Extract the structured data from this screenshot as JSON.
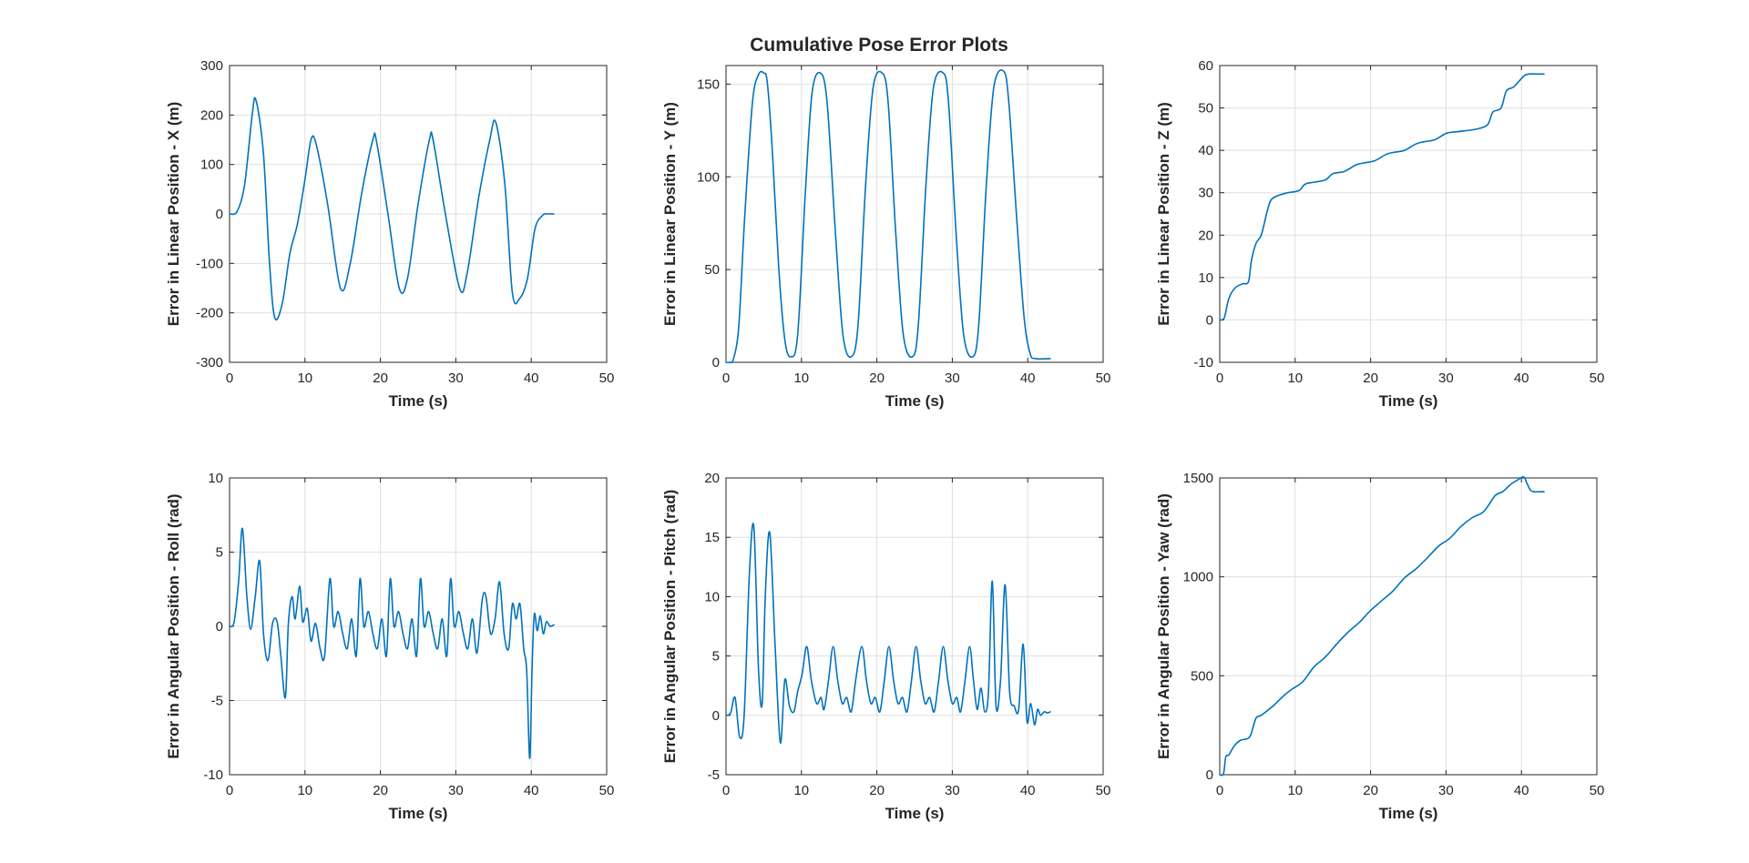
{
  "figure": {
    "title": "Cumulative Pose Error Plots"
  },
  "colors": {
    "series": "#0072BD",
    "axis": "#262626",
    "grid": "#dfdfdf"
  },
  "chart_data": [
    {
      "id": "x",
      "type": "line",
      "title": "",
      "xlabel": "Time (s)",
      "ylabel": "Error in Linear Position - X (m)",
      "xlim": [
        0,
        50
      ],
      "ylim": [
        -300,
        300
      ],
      "xticks": [
        0,
        10,
        20,
        30,
        40,
        50
      ],
      "yticks": [
        -300,
        -200,
        -100,
        0,
        100,
        200,
        300
      ],
      "grid": true,
      "series": [
        {
          "x": [
            0,
            1,
            2,
            3,
            3.5,
            4.5,
            5.3,
            6,
            7,
            8,
            9,
            10,
            10.8,
            11.5,
            13,
            14.7,
            16,
            17.5,
            19,
            19.5,
            21,
            22.5,
            23.6,
            25,
            26.5,
            27,
            28.5,
            30.5,
            31.5,
            33,
            34.5,
            35.3,
            36.5,
            37.5,
            38.5,
            39.5,
            40.5,
            41.5,
            42,
            43
          ],
          "y": [
            0,
            5,
            60,
            200,
            230,
            120,
            -100,
            -210,
            -180,
            -80,
            -20,
            70,
            150,
            140,
            20,
            -150,
            -100,
            40,
            150,
            145,
            0,
            -150,
            -130,
            20,
            150,
            148,
            10,
            -150,
            -120,
            30,
            150,
            185,
            60,
            -160,
            -170,
            -130,
            -30,
            -3,
            0,
            0
          ]
        }
      ]
    },
    {
      "id": "y",
      "type": "line",
      "title": "",
      "xlabel": "Time (s)",
      "ylabel": "Error in Linear Position - Y (m)",
      "xlim": [
        0,
        50
      ],
      "ylim": [
        0,
        160
      ],
      "xticks": [
        0,
        10,
        20,
        30,
        40,
        50
      ],
      "yticks": [
        0,
        50,
        100,
        150
      ],
      "grid": true,
      "series": [
        {
          "x": [
            0,
            0.5,
            1,
            1.7,
            2.5,
            3.5,
            4.3,
            5,
            5.5,
            6.2,
            7,
            7.8,
            8.6,
            9.5,
            10.5,
            11.4,
            12.5,
            13.4,
            14.5,
            15.5,
            16.6,
            17.5,
            18.5,
            19.5,
            20.7,
            21.5,
            22.5,
            23.5,
            24.7,
            25.5,
            26.5,
            27.5,
            28.8,
            29.5,
            30.5,
            31.5,
            32.7,
            33.5,
            34.5,
            35.5,
            36.8,
            37.5,
            38.5,
            39.5,
            40.3,
            41,
            43
          ],
          "y": [
            0,
            0,
            2,
            20,
            80,
            140,
            155,
            156,
            150,
            110,
            50,
            12,
            3,
            15,
            90,
            145,
            156,
            140,
            70,
            15,
            3,
            20,
            95,
            148,
            156,
            140,
            70,
            15,
            3,
            20,
            95,
            148,
            156,
            140,
            70,
            15,
            3,
            20,
            95,
            148,
            157,
            140,
            80,
            25,
            5,
            2,
            2
          ]
        }
      ]
    },
    {
      "id": "z",
      "type": "line",
      "title": "",
      "xlabel": "Time (s)",
      "ylabel": "Error in Linear Position - Z (m)",
      "xlim": [
        0,
        50
      ],
      "ylim": [
        -10,
        60
      ],
      "xticks": [
        0,
        10,
        20,
        30,
        40,
        50
      ],
      "yticks": [
        -10,
        0,
        10,
        20,
        30,
        40,
        50,
        60
      ],
      "grid": true,
      "series": [
        {
          "x": [
            0,
            0.6,
            1.2,
            2,
            3,
            3.8,
            4.2,
            4.8,
            5.5,
            6.2,
            6.7,
            7.3,
            8,
            9,
            10.5,
            11.3,
            12.5,
            14,
            15,
            16.5,
            18,
            19,
            20.5,
            22,
            23,
            24.5,
            26,
            27,
            28.5,
            30,
            31,
            32.5,
            34,
            35.5,
            36.2,
            37.3,
            38,
            39,
            40.3,
            41,
            42,
            43
          ],
          "y": [
            0,
            0.5,
            5,
            7.5,
            8.5,
            9,
            14,
            18,
            20,
            25,
            28,
            29,
            29.5,
            30,
            30.5,
            32,
            32.5,
            33,
            34.5,
            35,
            36.5,
            37,
            37.5,
            39,
            39.5,
            40,
            41.5,
            42,
            42.5,
            44,
            44.3,
            44.6,
            45,
            46,
            49,
            50,
            54,
            55,
            57.5,
            58,
            58,
            58
          ]
        }
      ]
    },
    {
      "id": "roll",
      "type": "line",
      "title": "",
      "xlabel": "Time (s)",
      "ylabel": "Error in Angular Position - Roll (rad)",
      "xlim": [
        0,
        50
      ],
      "ylim": [
        -10,
        10
      ],
      "xticks": [
        0,
        10,
        20,
        30,
        40,
        50
      ],
      "yticks": [
        -10,
        -5,
        0,
        5,
        10
      ],
      "grid": true,
      "series": [
        {
          "x": [
            0,
            0.6,
            1.2,
            1.7,
            2.3,
            2.8,
            3.4,
            4,
            4.5,
            5.1,
            5.7,
            6.3,
            6.8,
            7.4,
            7.8,
            8.3,
            8.7,
            9.3,
            9.7,
            10.3,
            10.8,
            11.4,
            12,
            12.6,
            13.3,
            13.8,
            14.4,
            15,
            15.6,
            16.2,
            16.8,
            17.3,
            17.8,
            18.4,
            19,
            19.6,
            20.2,
            20.8,
            21.3,
            21.8,
            22.4,
            23,
            23.6,
            24.2,
            24.8,
            25.3,
            25.8,
            26.4,
            27,
            27.6,
            28.2,
            28.8,
            29.3,
            29.8,
            30.4,
            31,
            31.6,
            32.2,
            32.8,
            33.5,
            34,
            34.6,
            35.2,
            35.8,
            36.4,
            37,
            37.5,
            38,
            38.5,
            39,
            39.4,
            39.8,
            40.1,
            40.4,
            40.8,
            41.2,
            41.6,
            42,
            42.5,
            43
          ],
          "y": [
            0,
            0.3,
            3,
            6.6,
            2,
            -0.2,
            2,
            4.4,
            -0.5,
            -2.3,
            0.2,
            0.3,
            -2,
            -4.8,
            0.2,
            2,
            0.5,
            2.7,
            0.3,
            1.2,
            -1,
            0.2,
            -1.5,
            -2,
            3.2,
            0,
            1,
            -0.5,
            -1.5,
            0.5,
            -2,
            3.2,
            0,
            1,
            -0.5,
            -1.5,
            0.5,
            -2,
            3.2,
            0,
            1,
            -0.5,
            -1.5,
            0.5,
            -2,
            3.2,
            0,
            1,
            -0.5,
            -1.5,
            0.5,
            -2,
            3.2,
            0,
            1,
            -0.5,
            -1.5,
            0.5,
            -1.8,
            1.8,
            2,
            -0.5,
            0.5,
            3,
            -0.5,
            -1.5,
            1.5,
            0.5,
            1.5,
            -1.5,
            -3,
            -8.9,
            -3,
            0.8,
            -0.3,
            0.7,
            -0.5,
            0.3,
            0,
            0.1
          ]
        }
      ]
    },
    {
      "id": "pitch",
      "type": "line",
      "title": "",
      "xlabel": "Time (s)",
      "ylabel": "Error in Angular Position - Pitch (rad)",
      "xlim": [
        0,
        50
      ],
      "ylim": [
        -5,
        20
      ],
      "xticks": [
        0,
        10,
        20,
        30,
        40,
        50
      ],
      "yticks": [
        -5,
        0,
        5,
        10,
        15,
        20
      ],
      "grid": true,
      "series": [
        {
          "x": [
            0,
            0.6,
            1.2,
            1.8,
            2.4,
            3.1,
            3.7,
            4.3,
            4.8,
            5.2,
            5.8,
            6.5,
            7.2,
            7.8,
            8.4,
            9,
            9.5,
            10.1,
            10.7,
            11.3,
            12,
            12.6,
            13,
            13.6,
            14.2,
            14.8,
            15.4,
            16,
            16.6,
            17.2,
            18,
            18.6,
            19.2,
            19.8,
            20.4,
            21,
            21.6,
            22.2,
            22.8,
            23.4,
            24,
            24.6,
            25.2,
            25.8,
            26.4,
            27,
            27.6,
            28.2,
            28.8,
            29.4,
            30,
            30.6,
            31.1,
            31.7,
            32.3,
            32.8,
            33.3,
            33.8,
            34.3,
            34.8,
            35.3,
            35.8,
            36.4,
            37,
            37.6,
            38.2,
            38.8,
            39.4,
            39.9,
            40.4,
            40.9,
            41.3,
            41.7,
            42.2,
            42.6,
            43
          ],
          "y": [
            0,
            0.2,
            1.5,
            -1.8,
            0,
            12,
            15.8,
            4,
            1,
            10,
            15.4,
            6,
            -2.3,
            3,
            0.8,
            0.3,
            2,
            3.5,
            5.8,
            3,
            1,
            1.5,
            0.5,
            3,
            5.8,
            3,
            1,
            1.5,
            0.3,
            3,
            5.8,
            3,
            1,
            1.5,
            0.3,
            3,
            5.8,
            3,
            1,
            1.5,
            0.3,
            3,
            5.8,
            3,
            1,
            1.5,
            0.3,
            3,
            5.8,
            3,
            1,
            1.5,
            0.3,
            3,
            5.8,
            3,
            0.5,
            2.3,
            0.3,
            2,
            11.3,
            0.8,
            3,
            11,
            2,
            0.8,
            0.5,
            6,
            -0.5,
            1,
            -0.8,
            0.5,
            0,
            0.3,
            0.2,
            0.3
          ]
        }
      ]
    },
    {
      "id": "yaw",
      "type": "line",
      "title": "",
      "xlabel": "Time (s)",
      "ylabel": "Error in Angular Position - Yaw (rad)",
      "xlim": [
        0,
        50
      ],
      "ylim": [
        0,
        1500
      ],
      "xticks": [
        0,
        10,
        20,
        30,
        40,
        50
      ],
      "yticks": [
        0,
        500,
        1000,
        1500
      ],
      "grid": true,
      "series": [
        {
          "x": [
            0,
            0.5,
            0.8,
            1.2,
            2,
            2.8,
            3.5,
            4.1,
            4.8,
            5.5,
            7,
            8.5,
            9.5,
            11,
            12.5,
            14,
            15.5,
            17,
            18.5,
            20,
            21.5,
            23,
            24.5,
            26,
            27.5,
            29,
            30.5,
            32,
            33.5,
            35,
            36.5,
            37.5,
            38.5,
            39.5,
            40.3,
            40.7,
            41.2,
            41.7,
            42.5,
            43
          ],
          "y": [
            0,
            5,
            90,
            100,
            150,
            175,
            180,
            200,
            285,
            300,
            345,
            400,
            430,
            470,
            545,
            595,
            660,
            720,
            770,
            830,
            880,
            930,
            995,
            1040,
            1095,
            1155,
            1195,
            1255,
            1300,
            1330,
            1410,
            1430,
            1465,
            1490,
            1505,
            1475,
            1438,
            1430,
            1430,
            1430
          ]
        }
      ]
    }
  ]
}
